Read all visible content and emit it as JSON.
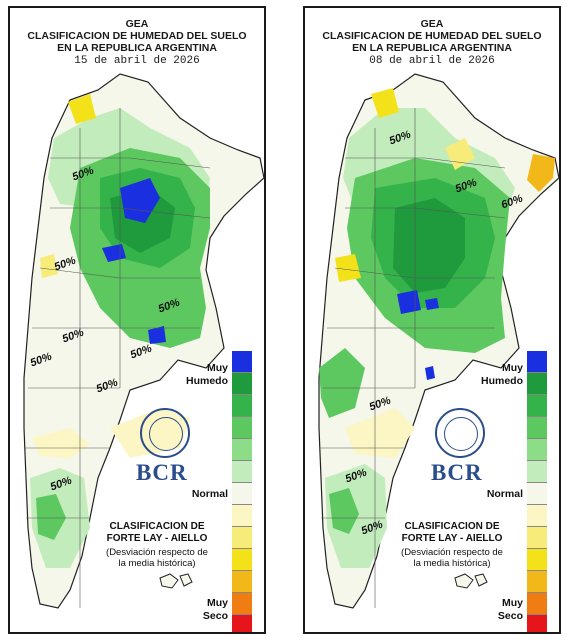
{
  "panels": [
    {
      "org": "GEA",
      "title_line1": "CLASIFICACION DE HUMEDAD DEL SUELO",
      "title_line2": "EN LA REPUBLICA ARGENTINA",
      "date": "15 de abril de 2026",
      "isolines": [
        "50%",
        "50%",
        "50%",
        "50%",
        "50%",
        "50%",
        "50%",
        "50%"
      ]
    },
    {
      "org": "GEA",
      "title_line1": "CLASIFICACION DE HUMEDAD DEL SUELO",
      "title_line2": "EN LA REPUBLICA ARGENTINA",
      "date": "08 de abril de 2026",
      "isolines": [
        "50%",
        "50%",
        "60%",
        "50%",
        "50%",
        "50%"
      ]
    }
  ],
  "legend": {
    "top_label_1": "Muy",
    "top_label_2": "Humedo",
    "mid_label": "Normal",
    "bottom_label_1": "Muy",
    "bottom_label_2": "Seco",
    "colors": [
      "#1a2fe0",
      "#1f9a3c",
      "#34b34a",
      "#5cc85f",
      "#8ddc88",
      "#c2ecbc",
      "#f5f7ea",
      "#fbf6c4",
      "#f7ec7a",
      "#f3e21a",
      "#f2b81a",
      "#ef7d12",
      "#e6151b"
    ]
  },
  "branding": {
    "logo_text": "BCR",
    "classification_line1": "CLASIFICACION DE",
    "classification_line2": "FORTE LAY - AIELLO",
    "note_line1": "(Desviación respecto de",
    "note_line2": "la media histórica)"
  }
}
